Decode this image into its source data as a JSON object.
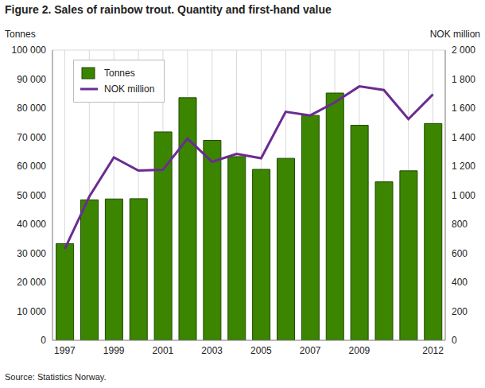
{
  "chart_data": {
    "type": "bar",
    "title": "Figure 2. Sales of rainbow trout. Quantity and first-hand value",
    "y_label": "Tonnes",
    "y2_label": "NOK million",
    "source": "Source: Statistics Norway.",
    "categories": [
      "1997",
      null,
      "1999",
      null,
      "2001",
      null,
      "2003",
      null,
      "2005",
      null,
      "2007",
      null,
      "2009",
      null,
      null,
      "2012"
    ],
    "series": [
      {
        "name": "Tonnes",
        "type": "bar",
        "color": "#3b8500",
        "values": [
          33300,
          48400,
          48700,
          48800,
          71800,
          83600,
          68900,
          63300,
          58900,
          62700,
          77500,
          85200,
          74100,
          54600,
          58400,
          74700
        ]
      },
      {
        "name": "NOK million",
        "type": "line",
        "axis": "y2",
        "color": "#6b2c91",
        "values": [
          630,
          990,
          1260,
          1170,
          1175,
          1390,
          1230,
          1285,
          1255,
          1575,
          1550,
          1640,
          1750,
          1725,
          1525,
          1695
        ]
      }
    ],
    "ylim": [
      0,
      100000
    ],
    "yticks": [
      0,
      {
        "value": 10000,
        "label": "10 000"
      },
      {
        "value": 20000,
        "label": "20 000"
      },
      {
        "value": 30000,
        "label": "30 000"
      },
      {
        "value": 40000,
        "label": "40 000"
      },
      {
        "value": 50000,
        "label": "50 000"
      },
      {
        "value": 60000,
        "label": "60 000"
      },
      {
        "value": 70000,
        "label": "70 000"
      },
      {
        "value": 80000,
        "label": "80 000"
      },
      {
        "value": 90000,
        "label": "90 000"
      },
      {
        "value": 100000,
        "label": "100 000"
      }
    ],
    "y2lim": [
      0,
      2000
    ],
    "y2ticks": [
      0,
      200,
      400,
      600,
      800,
      {
        "value": 1000,
        "label": "1 000"
      },
      {
        "value": 1200,
        "label": "1 200"
      },
      {
        "value": 1400,
        "label": "1 400"
      },
      {
        "value": 1600,
        "label": "1 600"
      },
      {
        "value": 1800,
        "label": "1 800"
      },
      {
        "value": 2000,
        "label": "2 000"
      }
    ],
    "grid": true,
    "legend": "top-left"
  }
}
